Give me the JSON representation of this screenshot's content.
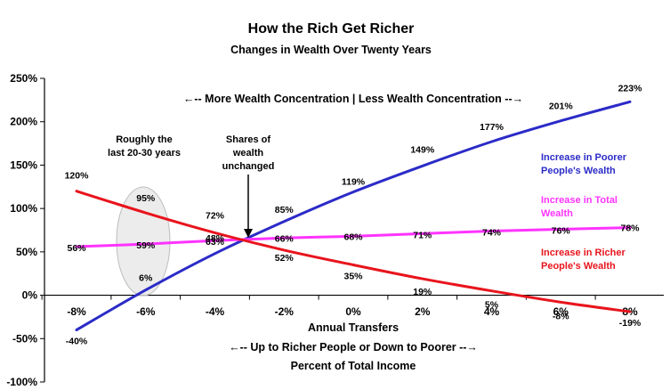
{
  "chart_data": {
    "type": "line",
    "title": "How the Rich Get Richer",
    "subtitle": "Changes in Wealth Over Twenty Years",
    "xlabel": "Annual Transfers",
    "xlabel_sub1": "←-- Up to Richer People or Down to Poorer --→",
    "xlabel_sub2": "Percent of Total Income",
    "top_annotation": "←-- More Wealth Concentration | Less Wealth Concentration --→",
    "x": [
      -8,
      -6,
      -4,
      -2,
      0,
      2,
      4,
      6,
      8
    ],
    "x_tick_labels": [
      "-8%",
      "-6%",
      "-4%",
      "-2%",
      "0%",
      "2%",
      "4%",
      "6%",
      "8%"
    ],
    "xlim": [
      -8,
      8
    ],
    "ylim": [
      -100,
      250
    ],
    "y_ticks": [
      -100,
      -50,
      0,
      50,
      100,
      150,
      200,
      250
    ],
    "y_tick_labels": [
      "-100%",
      "-50%",
      "0%",
      "50%",
      "100%",
      "150%",
      "200%",
      "250%"
    ],
    "grid": false,
    "series": [
      {
        "name": "Increase in Poorer People's Wealth",
        "color": "#2b2bc8",
        "values": [
          -40,
          6,
          48,
          85,
          119,
          149,
          177,
          201,
          223
        ],
        "labels": [
          "-40%",
          "6%",
          "48%",
          "85%",
          "119%",
          "149%",
          "177%",
          "201%",
          "223%"
        ]
      },
      {
        "name": "Increase in Total Wealth",
        "color": "#ff33ff",
        "values": [
          56,
          59,
          63,
          66,
          68,
          71,
          74,
          76,
          78
        ],
        "labels": [
          "56%",
          "59%",
          "63%",
          "66%",
          "68%",
          "71%",
          "74%",
          "76%",
          "78%"
        ]
      },
      {
        "name": "Increase in Richer People's Wealth",
        "color": "#e8141c",
        "values": [
          120,
          95,
          72,
          52,
          35,
          19,
          5,
          -8,
          -19
        ],
        "labels": [
          "120%",
          "95%",
          "72%",
          "52%",
          "35%",
          "19%",
          "5%",
          "-8%",
          "-19%"
        ]
      }
    ],
    "legend": [
      {
        "line1": "Increase in Poorer",
        "line2": "People's Wealth",
        "color": "#2b2bc8"
      },
      {
        "line1": "Increase in Total",
        "line2": "Wealth",
        "color": "#ff33ff"
      },
      {
        "line1": "Increase in Richer",
        "line2": "People's Wealth",
        "color": "#e8141c"
      }
    ],
    "legend_position": "right",
    "annotations": [
      {
        "lines": [
          "Roughly the",
          "last 20-30 years"
        ]
      },
      {
        "lines": [
          "Shares of",
          "wealth",
          "unchanged"
        ]
      }
    ]
  }
}
